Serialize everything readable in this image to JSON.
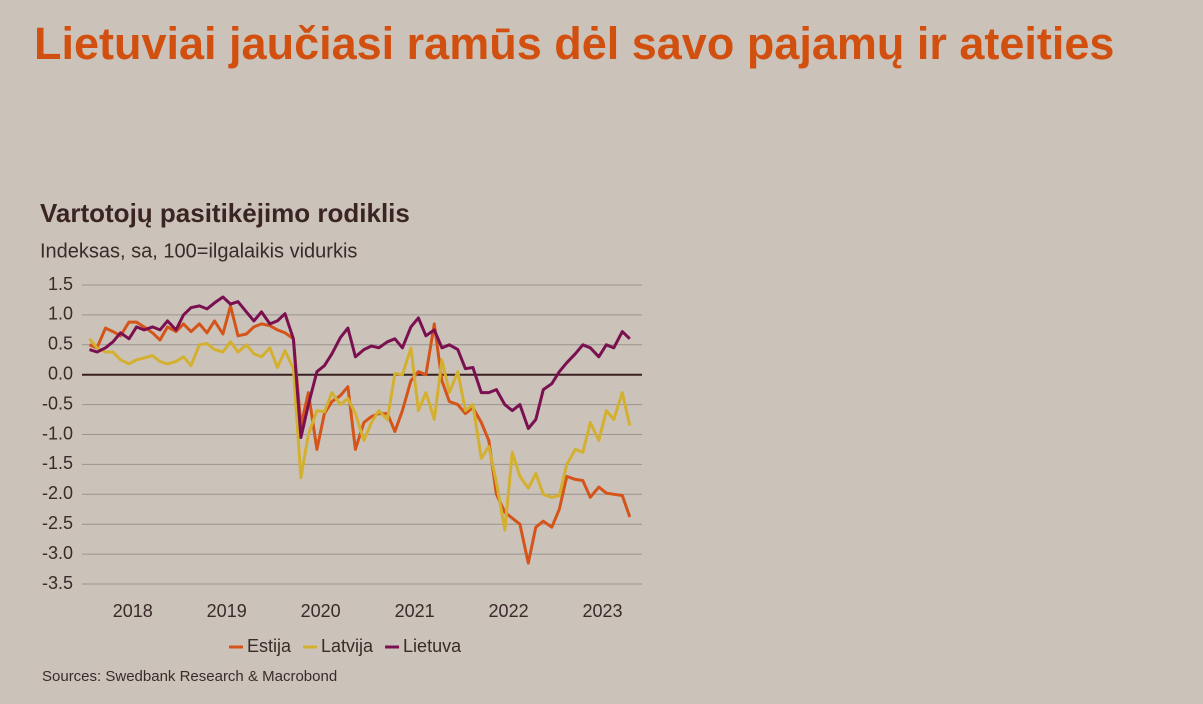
{
  "headline": "Lietuviai jaučiasi ramūs dėl savo pajamų ir ateities",
  "chart_data": {
    "type": "line",
    "title": "Vartotojų pasitikėjimo rodiklis",
    "subtitle": "Indeksas, sa, 100=ilgalaikis vidurkis",
    "source": "Sources: Swedbank Research & Macrobond",
    "x": [
      2018.04,
      2018.12,
      2018.21,
      2018.29,
      2018.37,
      2018.46,
      2018.54,
      2018.62,
      2018.71,
      2018.79,
      2018.87,
      2018.96,
      2019.04,
      2019.12,
      2019.21,
      2019.29,
      2019.37,
      2019.46,
      2019.54,
      2019.62,
      2019.71,
      2019.79,
      2019.87,
      2019.96,
      2020.04,
      2020.12,
      2020.21,
      2020.29,
      2020.37,
      2020.46,
      2020.54,
      2020.62,
      2020.71,
      2020.79,
      2020.87,
      2020.96,
      2021.04,
      2021.12,
      2021.21,
      2021.29,
      2021.37,
      2021.46,
      2021.54,
      2021.62,
      2021.71,
      2021.79,
      2021.87,
      2021.96,
      2022.04,
      2022.12,
      2022.21,
      2022.29,
      2022.37,
      2022.46,
      2022.54,
      2022.62,
      2022.71,
      2022.79,
      2022.87,
      2022.96,
      2023.04,
      2023.12,
      2023.21,
      2023.29,
      2023.37,
      2023.46,
      2023.54,
      2023.62,
      2023.71,
      2023.79
    ],
    "series": [
      {
        "name": "Estija",
        "color": "#d4541a",
        "values": [
          0.5,
          0.45,
          0.78,
          0.72,
          0.65,
          0.88,
          0.88,
          0.8,
          0.7,
          0.58,
          0.8,
          0.72,
          0.85,
          0.72,
          0.85,
          0.7,
          0.9,
          0.68,
          1.15,
          0.65,
          0.68,
          0.8,
          0.85,
          0.82,
          0.75,
          0.7,
          0.6,
          -0.85,
          -0.3,
          -1.25,
          -0.65,
          -0.45,
          -0.35,
          -0.2,
          -1.25,
          -0.8,
          -0.7,
          -0.65,
          -0.65,
          -0.95,
          -0.6,
          -0.1,
          0.05,
          0.0,
          0.85,
          -0.1,
          -0.45,
          -0.5,
          -0.65,
          -0.55,
          -0.8,
          -1.1,
          -2.0,
          -2.3,
          -2.4,
          -2.5,
          -3.15,
          -2.55,
          -2.45,
          -2.55,
          -2.25,
          -1.7,
          -1.75,
          -1.77,
          -2.05,
          -1.88,
          -1.98,
          -2.0,
          -2.02,
          -2.38
        ]
      },
      {
        "name": "Latvija",
        "color": "#d4b030",
        "values": [
          0.6,
          0.45,
          0.38,
          0.38,
          0.25,
          0.18,
          0.25,
          0.28,
          0.32,
          0.22,
          0.18,
          0.22,
          0.3,
          0.15,
          0.5,
          0.52,
          0.42,
          0.38,
          0.55,
          0.38,
          0.5,
          0.35,
          0.3,
          0.45,
          0.12,
          0.4,
          0.1,
          -1.72,
          -1.0,
          -0.6,
          -0.62,
          -0.3,
          -0.5,
          -0.4,
          -0.65,
          -1.1,
          -0.8,
          -0.6,
          -0.75,
          0.02,
          0.0,
          0.45,
          -0.6,
          -0.3,
          -0.75,
          0.25,
          -0.3,
          0.05,
          -0.6,
          -0.5,
          -1.4,
          -1.2,
          -1.8,
          -2.6,
          -1.3,
          -1.7,
          -1.9,
          -1.65,
          -2.0,
          -2.05,
          -2.02,
          -1.5,
          -1.25,
          -1.3,
          -0.8,
          -1.1,
          -0.6,
          -0.75,
          -0.3,
          -0.85
        ]
      },
      {
        "name": "Lietuva",
        "color": "#7a1050",
        "values": [
          0.42,
          0.38,
          0.45,
          0.55,
          0.7,
          0.6,
          0.8,
          0.75,
          0.8,
          0.75,
          0.9,
          0.75,
          1.0,
          1.12,
          1.15,
          1.1,
          1.2,
          1.3,
          1.18,
          1.22,
          1.05,
          0.9,
          1.05,
          0.85,
          0.9,
          1.02,
          0.6,
          -1.05,
          -0.5,
          0.05,
          0.15,
          0.35,
          0.62,
          0.78,
          0.3,
          0.42,
          0.48,
          0.45,
          0.55,
          0.6,
          0.45,
          0.8,
          0.95,
          0.65,
          0.75,
          0.45,
          0.5,
          0.42,
          0.1,
          0.12,
          -0.3,
          -0.3,
          -0.25,
          -0.5,
          -0.6,
          -0.5,
          -0.9,
          -0.75,
          -0.25,
          -0.15,
          0.05,
          0.2,
          0.35,
          0.5,
          0.45,
          0.3,
          0.5,
          0.45,
          0.72,
          0.6
        ]
      }
    ],
    "xlim": [
      2017.96,
      2023.92
    ],
    "xticks": [
      {
        "value": 2018.5,
        "label": "2018"
      },
      {
        "value": 2019.5,
        "label": "2019"
      },
      {
        "value": 2020.5,
        "label": "2020"
      },
      {
        "value": 2021.5,
        "label": "2021"
      },
      {
        "value": 2022.5,
        "label": "2022"
      },
      {
        "value": 2023.5,
        "label": "2023"
      }
    ],
    "ylim": [
      -3.5,
      1.5
    ],
    "yticks": [
      {
        "value": 1.5,
        "label": "1.5"
      },
      {
        "value": 1.0,
        "label": "1.0"
      },
      {
        "value": 0.5,
        "label": "0.5"
      },
      {
        "value": 0.0,
        "label": "0.0"
      },
      {
        "value": -0.5,
        "label": "-0.5"
      },
      {
        "value": -1.0,
        "label": "-1.0"
      },
      {
        "value": -1.5,
        "label": "-1.5"
      },
      {
        "value": -2.0,
        "label": "-2.0"
      },
      {
        "value": -2.5,
        "label": "-2.5"
      },
      {
        "value": -3.0,
        "label": "-3.0"
      },
      {
        "value": -3.5,
        "label": "-3.5"
      }
    ],
    "grid": true,
    "legend": "bottom"
  }
}
